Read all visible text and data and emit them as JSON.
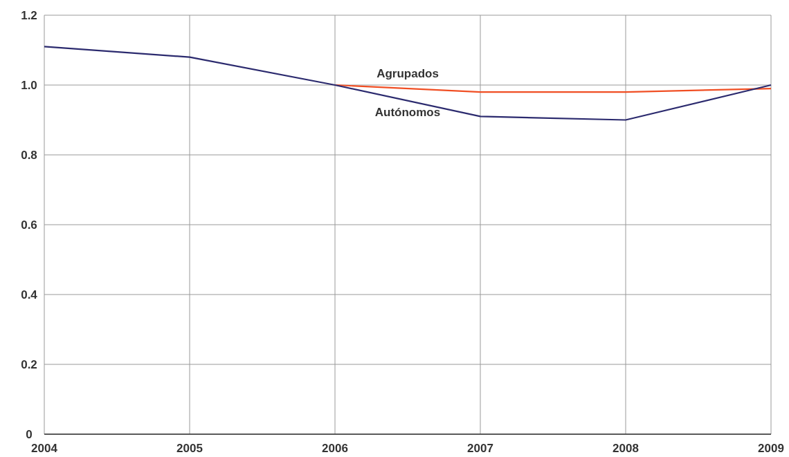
{
  "chart_data": {
    "type": "line",
    "x": [
      2004,
      2005,
      2006,
      2007,
      2008,
      2009
    ],
    "series": [
      {
        "name": "Agrupados",
        "color": "#f04e23",
        "values": [
          null,
          null,
          1.0,
          0.98,
          0.98,
          0.99
        ]
      },
      {
        "name": "Autónomos",
        "color": "#2b2a6e",
        "values": [
          1.11,
          1.08,
          1.0,
          0.91,
          0.9,
          1.0
        ]
      }
    ],
    "xlim": [
      2004,
      2009
    ],
    "xticks": [
      2004,
      2005,
      2006,
      2007,
      2008,
      2009
    ],
    "ylim": [
      0,
      1.2
    ],
    "yticks": [
      0,
      0.2,
      0.4,
      0.6,
      0.8,
      {
        "value": 1,
        "label": "1.0"
      },
      1.2
    ],
    "grid": true,
    "legend": false,
    "marker": "none",
    "line_style": "solid"
  }
}
